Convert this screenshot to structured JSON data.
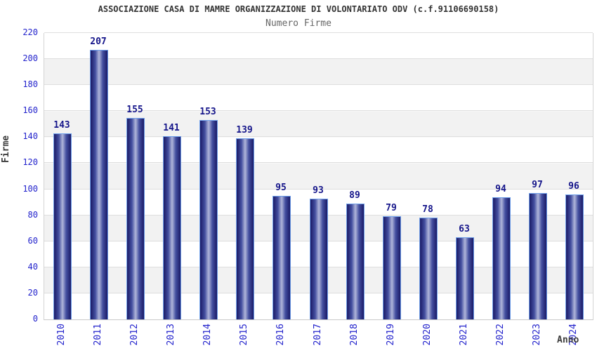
{
  "chart_data": {
    "type": "bar",
    "title": "ASSOCIAZIONE CASA DI MAMRE ORGANIZZAZIONE DI VOLONTARIATO ODV (c.f.91106690158)",
    "subtitle": "Numero Firme",
    "xlabel": "Anno",
    "ylabel": "Firme",
    "categories": [
      "2010",
      "2011",
      "2012",
      "2013",
      "2014",
      "2015",
      "2016",
      "2017",
      "2018",
      "2019",
      "2020",
      "2021",
      "2022",
      "2023",
      "2024"
    ],
    "values": [
      143,
      207,
      155,
      141,
      153,
      139,
      95,
      93,
      89,
      79,
      78,
      63,
      94,
      97,
      96
    ],
    "ylim": [
      0,
      220
    ],
    "ytick_step": 20,
    "grid": true,
    "legend": false,
    "band_stripes": true
  },
  "colors": {
    "axis_tick_text": "#2323cc",
    "value_label_text": "#15158a",
    "title_text": "#333333",
    "subtitle_text": "#666666",
    "axis_title_text": "#3c3c3c",
    "bar_border": "#6f9fea",
    "bar_edge": "#1a1a66",
    "bar_mid": "#444fa0",
    "bar_center": "#b0b6da",
    "band_gray": "#f2f2f2",
    "gridline": "#dedede",
    "plot_border": "#d4d4d4",
    "background": "#ffffff"
  }
}
